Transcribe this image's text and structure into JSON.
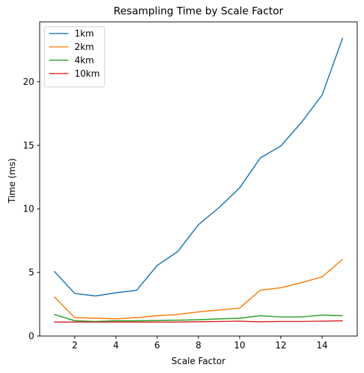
{
  "chart_data": {
    "type": "line",
    "title": "Resampling Time by Scale Factor",
    "xlabel": "Scale Factor",
    "ylabel": "Time (ms)",
    "xlim": [
      0.3,
      15.7
    ],
    "ylim": [
      0,
      24.7
    ],
    "xticks": [
      2,
      4,
      6,
      8,
      10,
      12,
      14
    ],
    "yticks": [
      0,
      5,
      10,
      15,
      20
    ],
    "grid": false,
    "legend_position": "top-left",
    "x": [
      1,
      2,
      3,
      4,
      5,
      6,
      7,
      8,
      9,
      10,
      11,
      12,
      13,
      14,
      15
    ],
    "series": [
      {
        "name": "1km",
        "color": "#1f77b4",
        "values": [
          5.1,
          3.35,
          3.15,
          3.4,
          3.6,
          5.55,
          6.65,
          8.75,
          10.1,
          11.65,
          14.0,
          14.95,
          16.8,
          18.95,
          23.45
        ]
      },
      {
        "name": "2km",
        "color": "#ff7f0e",
        "values": [
          3.1,
          1.45,
          1.4,
          1.35,
          1.45,
          1.6,
          1.7,
          1.9,
          2.05,
          2.2,
          3.6,
          3.8,
          4.2,
          4.65,
          6.05
        ]
      },
      {
        "name": "4km",
        "color": "#2ca02c",
        "values": [
          1.7,
          1.2,
          1.15,
          1.2,
          1.2,
          1.22,
          1.25,
          1.28,
          1.35,
          1.4,
          1.6,
          1.5,
          1.5,
          1.65,
          1.6
        ]
      },
      {
        "name": "10km",
        "color": "#d62728",
        "values": [
          1.1,
          1.1,
          1.1,
          1.1,
          1.1,
          1.1,
          1.1,
          1.12,
          1.15,
          1.17,
          1.12,
          1.15,
          1.15,
          1.17,
          1.2
        ]
      }
    ]
  }
}
